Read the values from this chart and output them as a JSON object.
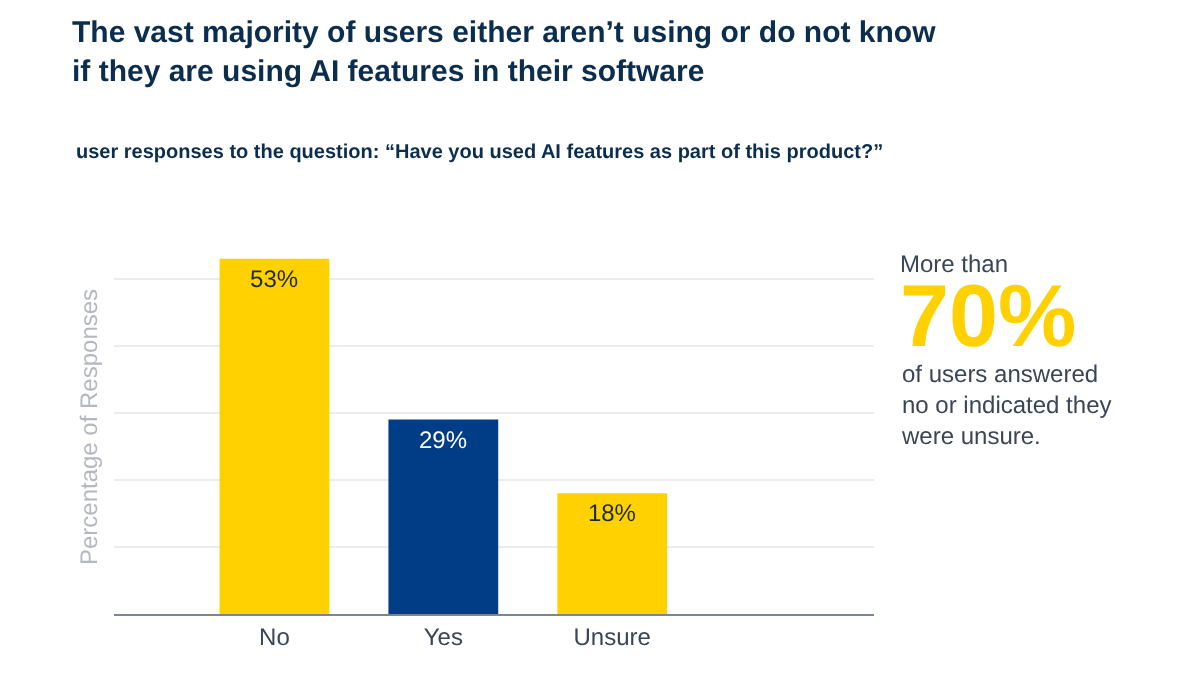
{
  "chart_data": {
    "type": "bar",
    "title": "The vast majority of users either aren’t using or do not know\nif they are using AI features in their software",
    "subtitle": "user responses to the question: “Have you used AI features as part of this product?”",
    "ylabel": "Percentage of Responses",
    "categories": [
      "No",
      "Yes",
      "Unsure"
    ],
    "values": [
      53,
      29,
      18
    ],
    "colors": [
      "#ffd100",
      "#003d87",
      "#ffd100"
    ],
    "value_labels": [
      "53%",
      "29%",
      "18%"
    ],
    "yticks": [
      {
        "value": 10,
        "label": null
      },
      {
        "value": 20,
        "label": null
      },
      {
        "value": 30,
        "label": null
      },
      {
        "value": 40,
        "label": null
      },
      {
        "value": 50,
        "label": null
      }
    ],
    "grid": "y",
    "legend": false,
    "annotations": [
      "More than",
      "70%",
      "of users answered\nno or indicated they\nwere unsure."
    ]
  }
}
